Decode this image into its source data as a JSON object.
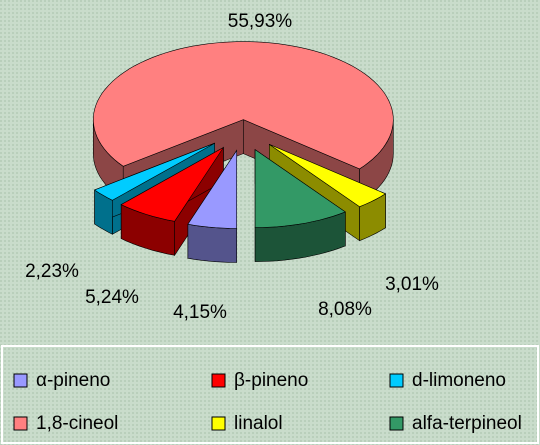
{
  "chart_data": {
    "type": "pie3d",
    "categories": [
      "α-pineno",
      "β-pineno",
      "d-limoneno",
      "1,8-cineol",
      "linalol",
      "alfa-terpineol"
    ],
    "values": [
      4.15,
      5.24,
      2.23,
      55.93,
      3.01,
      8.08
    ],
    "value_labels": [
      "4,15%",
      "5,24%",
      "2,23%",
      "55,93%",
      "3,01%",
      "8,08%"
    ],
    "colors": [
      "#9999ff",
      "#ff0000",
      "#00ccff",
      "#ff8080",
      "#ffff00",
      "#339966"
    ],
    "legend": "bottom"
  }
}
